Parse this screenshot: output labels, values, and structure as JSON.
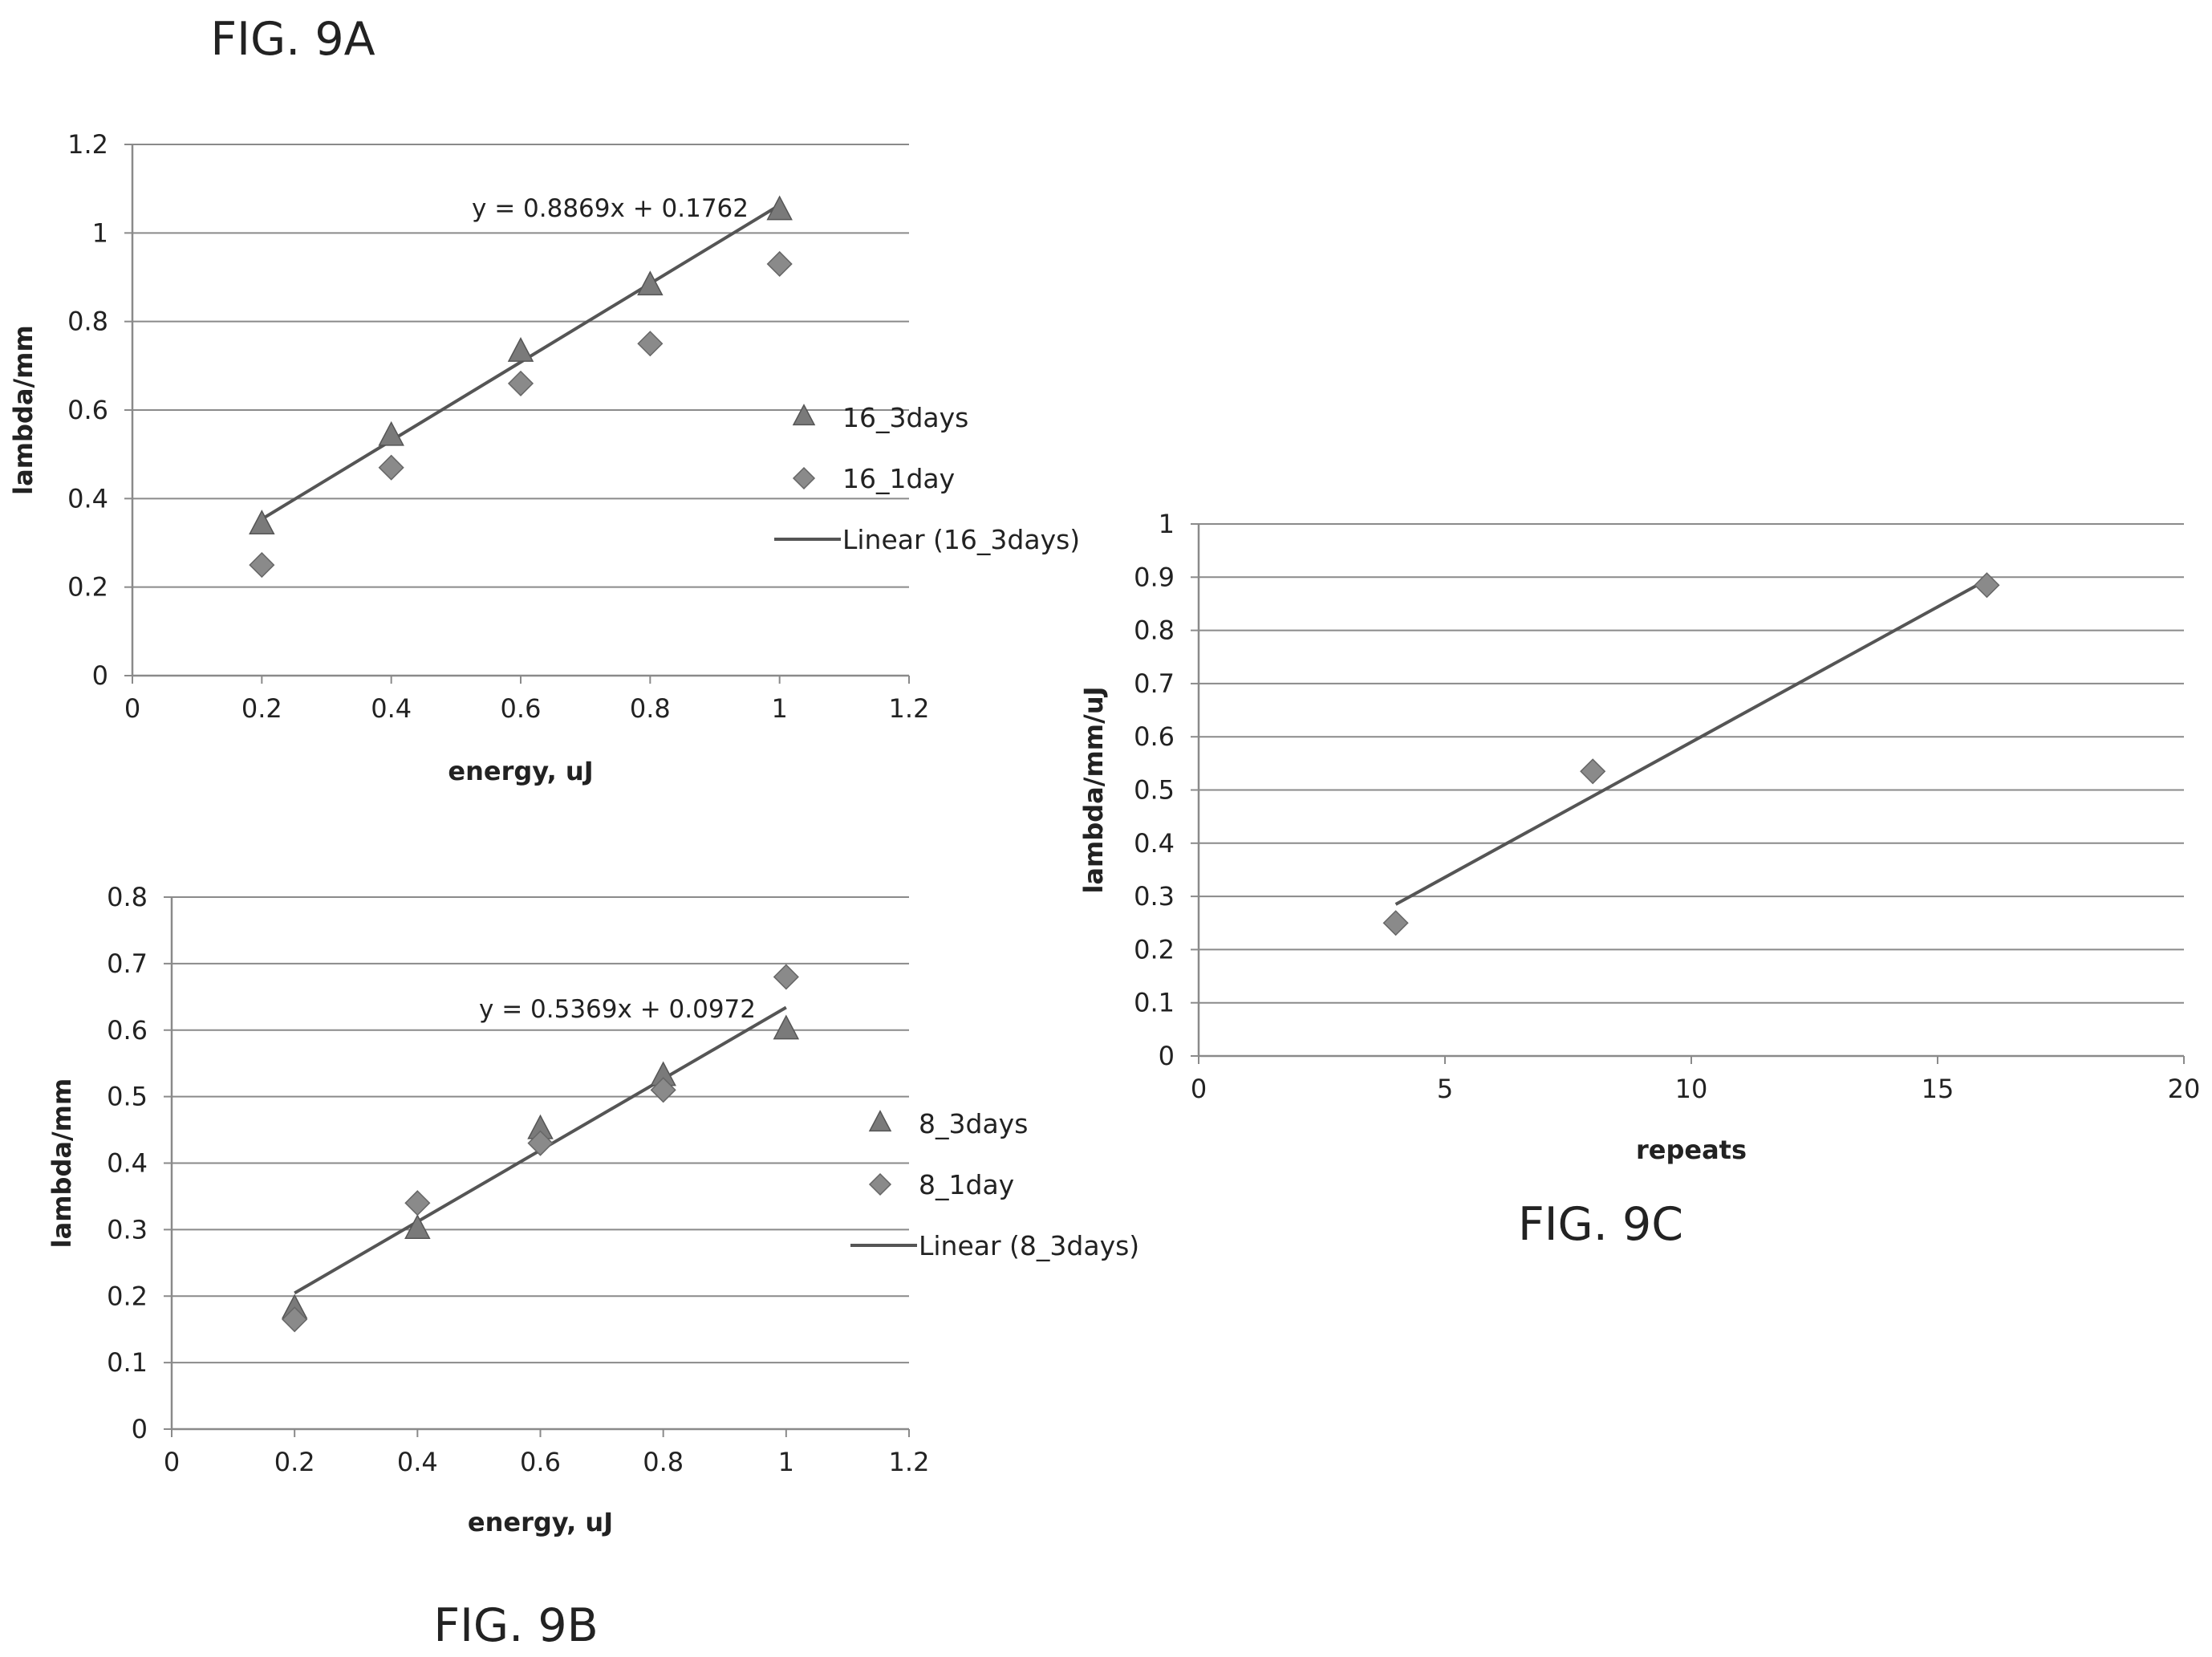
{
  "chart_data": [
    {
      "id": "9a",
      "type": "scatter",
      "caption": "FIG. 9A",
      "xlabel": "energy, uJ",
      "ylabel": "lambda/mm",
      "xlim": [
        0,
        1.2
      ],
      "ylim": [
        0,
        1.2
      ],
      "xticks": [
        "0",
        "0.2",
        "0.4",
        "0.6",
        "0.8",
        "1",
        "1.2"
      ],
      "yticks": [
        "0",
        "0.2",
        "0.4",
        "0.6",
        "0.8",
        "1",
        "1.2"
      ],
      "grid": true,
      "legend_position": "right",
      "series": [
        {
          "name": "16_3days",
          "marker": "triangle",
          "x": [
            0.2,
            0.4,
            0.6,
            0.8,
            1.0
          ],
          "y": [
            0.34,
            0.54,
            0.73,
            0.88,
            1.05
          ]
        },
        {
          "name": "16_1day",
          "marker": "diamond",
          "x": [
            0.2,
            0.4,
            0.6,
            0.8,
            1.0
          ],
          "y": [
            0.25,
            0.47,
            0.66,
            0.75,
            0.93
          ]
        }
      ],
      "trendline": {
        "name": "Linear (16_3days)",
        "slope": 0.8869,
        "intercept": 0.1762,
        "x_range": [
          0.2,
          1.0
        ],
        "equation": "y = 0.8869x + 0.1762"
      }
    },
    {
      "id": "9b",
      "type": "scatter",
      "caption": "FIG. 9B",
      "xlabel": "energy, uJ",
      "ylabel": "lambda/mm",
      "xlim": [
        0,
        1.2
      ],
      "ylim": [
        0,
        0.8
      ],
      "xticks": [
        "0",
        "0.2",
        "0.4",
        "0.6",
        "0.8",
        "1",
        "1.2"
      ],
      "yticks": [
        "0",
        "0.1",
        "0.2",
        "0.3",
        "0.4",
        "0.5",
        "0.6",
        "0.7",
        "0.8"
      ],
      "grid": true,
      "legend_position": "right",
      "series": [
        {
          "name": "8_3days",
          "marker": "triangle",
          "x": [
            0.2,
            0.4,
            0.6,
            0.8,
            1.0
          ],
          "y": [
            0.18,
            0.3,
            0.45,
            0.53,
            0.6
          ]
        },
        {
          "name": "8_1day",
          "marker": "diamond",
          "x": [
            0.2,
            0.4,
            0.6,
            0.8,
            1.0
          ],
          "y": [
            0.165,
            0.34,
            0.43,
            0.51,
            0.68
          ]
        }
      ],
      "trendline": {
        "name": "Linear (8_3days)",
        "slope": 0.5369,
        "intercept": 0.0972,
        "x_range": [
          0.2,
          1.0
        ],
        "equation": "y = 0.5369x + 0.0972"
      }
    },
    {
      "id": "9c",
      "type": "scatter",
      "caption": "FIG. 9C",
      "xlabel": "repeats",
      "ylabel": "lambda/mm/uJ",
      "xlim": [
        0,
        20
      ],
      "ylim": [
        0,
        1
      ],
      "xticks": [
        "0",
        "5",
        "10",
        "15",
        "20"
      ],
      "yticks": [
        "0",
        "0.1",
        "0.2",
        "0.3",
        "0.4",
        "0.5",
        "0.6",
        "0.7",
        "0.8",
        "0.9",
        "1"
      ],
      "grid": true,
      "legend_position": "none",
      "series": [
        {
          "marker": "diamond",
          "x": [
            4,
            8,
            16
          ],
          "y": [
            0.25,
            0.535,
            0.885
          ]
        }
      ],
      "trendline": {
        "x_range": [
          4,
          16
        ],
        "y_range": [
          0.285,
          0.895
        ]
      }
    }
  ]
}
